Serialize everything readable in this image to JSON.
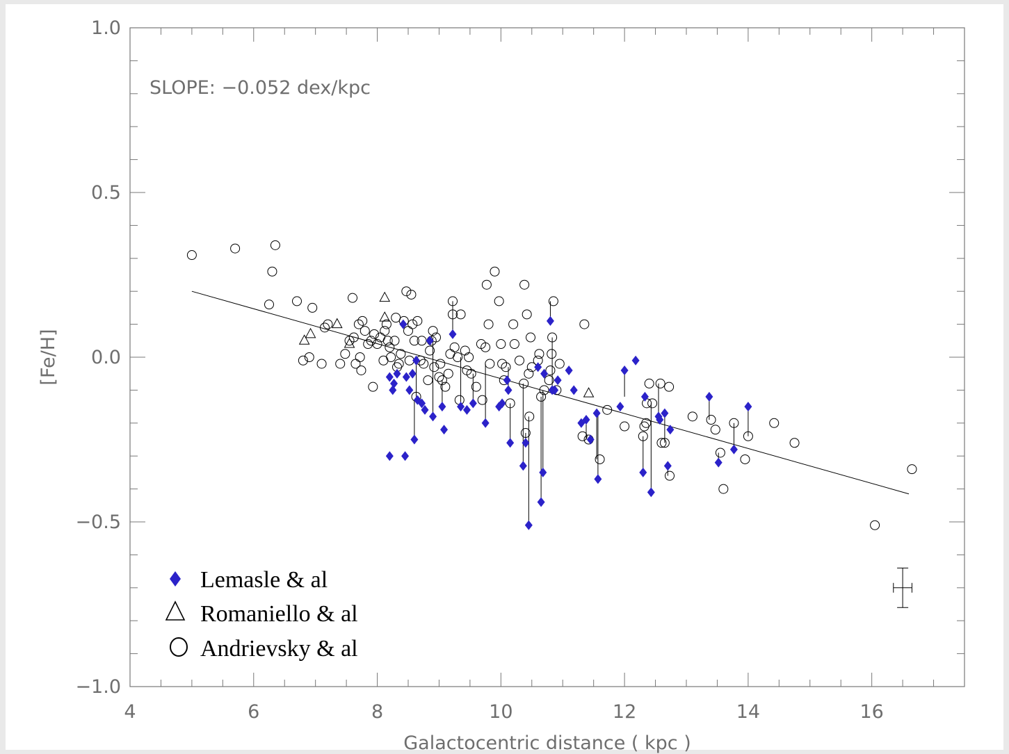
{
  "chart_data": {
    "type": "scatter",
    "title": "",
    "annotation": "SLOPE: −0.052 dex/kpc",
    "xlabel": "Galactocentric distance ( kpc )",
    "ylabel": "[Fe/H]",
    "xlim": [
      4,
      17.5
    ],
    "ylim": [
      -1.0,
      1.0
    ],
    "x_ticks": [
      4,
      6,
      8,
      10,
      12,
      14,
      16
    ],
    "x_tick_labels": [
      "4",
      "6",
      "8",
      "10",
      "12",
      "14",
      "16"
    ],
    "y_ticks": [
      -1.0,
      -0.5,
      0.0,
      0.5,
      1.0
    ],
    "y_tick_labels": [
      "−1.0",
      "−0.5",
      "0.0",
      "0.5",
      "1.0"
    ],
    "grid": false,
    "legend_position": "bottom-left",
    "legend": [
      {
        "name": "Lemasle & al",
        "marker": "diamond-filled",
        "color": "#2b22c9"
      },
      {
        "name": "Romaniello & al",
        "marker": "triangle-open",
        "color": "#000000"
      },
      {
        "name": "Andrievsky & al",
        "marker": "circle-open",
        "color": "#000000"
      }
    ],
    "fit_line": {
      "x": [
        5.0,
        16.6
      ],
      "y": [
        0.2,
        -0.415
      ]
    },
    "error_bar": {
      "x": 16.5,
      "y": -0.7,
      "xerr": 0.15,
      "yerr": 0.06
    },
    "series": [
      {
        "name": "Lemasle & al",
        "points": [
          [
            8.2,
            -0.06
          ],
          [
            8.25,
            -0.1
          ],
          [
            8.27,
            -0.08
          ],
          [
            8.32,
            -0.05
          ],
          [
            8.42,
            0.1
          ],
          [
            8.47,
            -0.06
          ],
          [
            8.52,
            -0.1
          ],
          [
            8.57,
            -0.05
          ],
          [
            8.6,
            -0.25
          ],
          [
            8.63,
            -0.01
          ],
          [
            8.65,
            -0.13
          ],
          [
            8.72,
            -0.14
          ],
          [
            8.77,
            -0.16
          ],
          [
            8.85,
            0.05
          ],
          [
            8.9,
            -0.18
          ],
          [
            9.05,
            -0.15
          ],
          [
            9.08,
            -0.22
          ],
          [
            9.22,
            0.07
          ],
          [
            9.35,
            -0.15
          ],
          [
            9.45,
            -0.16
          ],
          [
            9.55,
            -0.14
          ],
          [
            8.2,
            -0.3
          ],
          [
            8.45,
            -0.3
          ],
          [
            9.75,
            -0.2
          ],
          [
            9.97,
            -0.15
          ],
          [
            10.02,
            -0.14
          ],
          [
            10.1,
            -0.07
          ],
          [
            10.12,
            -0.1
          ],
          [
            10.15,
            -0.26
          ],
          [
            10.36,
            -0.33
          ],
          [
            10.4,
            -0.26
          ],
          [
            10.45,
            -0.51
          ],
          [
            10.6,
            -0.03
          ],
          [
            10.65,
            -0.44
          ],
          [
            10.68,
            -0.35
          ],
          [
            10.7,
            -0.05
          ],
          [
            10.8,
            0.11
          ],
          [
            10.83,
            -0.1
          ],
          [
            10.87,
            -0.1
          ],
          [
            10.92,
            -0.07
          ],
          [
            11.1,
            -0.04
          ],
          [
            11.18,
            -0.1
          ],
          [
            11.3,
            -0.2
          ],
          [
            11.38,
            -0.19
          ],
          [
            11.45,
            -0.25
          ],
          [
            11.55,
            -0.17
          ],
          [
            11.57,
            -0.37
          ],
          [
            11.93,
            -0.15
          ],
          [
            12.0,
            -0.04
          ],
          [
            12.18,
            -0.01
          ],
          [
            12.3,
            -0.35
          ],
          [
            12.33,
            -0.12
          ],
          [
            12.43,
            -0.41
          ],
          [
            12.55,
            -0.18
          ],
          [
            12.57,
            -0.19
          ],
          [
            12.65,
            -0.17
          ],
          [
            12.7,
            -0.33
          ],
          [
            12.74,
            -0.22
          ],
          [
            13.37,
            -0.12
          ],
          [
            13.52,
            -0.32
          ],
          [
            13.77,
            -0.28
          ],
          [
            14.0,
            -0.15
          ]
        ]
      },
      {
        "name": "Romaniello & al",
        "points": [
          [
            6.82,
            0.05
          ],
          [
            6.92,
            0.07
          ],
          [
            7.35,
            0.1
          ],
          [
            7.55,
            0.04
          ],
          [
            8.12,
            0.18
          ],
          [
            8.12,
            0.12
          ],
          [
            11.42,
            -0.11
          ]
        ]
      },
      {
        "name": "Andrievsky & al",
        "points": [
          [
            5.0,
            0.31
          ],
          [
            5.7,
            0.33
          ],
          [
            6.3,
            0.26
          ],
          [
            6.35,
            0.34
          ],
          [
            6.25,
            0.16
          ],
          [
            6.7,
            0.17
          ],
          [
            6.95,
            0.15
          ],
          [
            6.8,
            -0.01
          ],
          [
            6.9,
            0.0
          ],
          [
            7.1,
            -0.02
          ],
          [
            7.15,
            0.09
          ],
          [
            7.2,
            0.1
          ],
          [
            7.4,
            -0.02
          ],
          [
            7.48,
            0.01
          ],
          [
            7.55,
            0.05
          ],
          [
            7.6,
            0.18
          ],
          [
            7.62,
            0.06
          ],
          [
            7.65,
            -0.02
          ],
          [
            7.7,
            0.1
          ],
          [
            7.72,
            0.0
          ],
          [
            7.74,
            -0.04
          ],
          [
            7.76,
            0.11
          ],
          [
            7.8,
            0.08
          ],
          [
            7.85,
            0.04
          ],
          [
            7.9,
            0.05
          ],
          [
            7.95,
            0.07
          ],
          [
            7.93,
            -0.09
          ],
          [
            8.0,
            0.04
          ],
          [
            8.05,
            0.06
          ],
          [
            8.1,
            -0.01
          ],
          [
            8.12,
            0.08
          ],
          [
            8.15,
            0.1
          ],
          [
            8.17,
            0.05
          ],
          [
            8.2,
            0.03
          ],
          [
            8.22,
            0.0
          ],
          [
            8.28,
            0.05
          ],
          [
            8.3,
            0.12
          ],
          [
            8.32,
            -0.03
          ],
          [
            8.35,
            -0.02
          ],
          [
            8.38,
            0.01
          ],
          [
            8.43,
            0.11
          ],
          [
            8.47,
            0.2
          ],
          [
            8.5,
            0.08
          ],
          [
            8.52,
            -0.01
          ],
          [
            8.55,
            0.19
          ],
          [
            8.57,
            0.1
          ],
          [
            8.6,
            0.05
          ],
          [
            8.63,
            -0.12
          ],
          [
            8.65,
            0.11
          ],
          [
            8.7,
            -0.01
          ],
          [
            8.72,
            0.05
          ],
          [
            8.75,
            -0.02
          ],
          [
            8.82,
            -0.07
          ],
          [
            8.85,
            0.02
          ],
          [
            8.88,
            0.05
          ],
          [
            8.9,
            0.08
          ],
          [
            8.92,
            -0.03
          ],
          [
            8.95,
            0.06
          ],
          [
            9.0,
            -0.06
          ],
          [
            9.02,
            -0.02
          ],
          [
            9.05,
            -0.07
          ],
          [
            9.1,
            -0.09
          ],
          [
            9.15,
            -0.05
          ],
          [
            9.18,
            0.01
          ],
          [
            9.22,
            0.13
          ],
          [
            9.22,
            0.17
          ],
          [
            9.25,
            0.03
          ],
          [
            9.3,
            0.0
          ],
          [
            9.33,
            -0.13
          ],
          [
            9.35,
            0.13
          ],
          [
            9.42,
            0.02
          ],
          [
            9.45,
            -0.04
          ],
          [
            9.48,
            0.0
          ],
          [
            9.52,
            -0.05
          ],
          [
            9.6,
            -0.09
          ],
          [
            9.7,
            -0.13
          ],
          [
            9.68,
            0.04
          ],
          [
            9.75,
            0.03
          ],
          [
            9.77,
            0.22
          ],
          [
            9.8,
            0.1
          ],
          [
            9.82,
            -0.02
          ],
          [
            9.9,
            0.26
          ],
          [
            9.97,
            0.17
          ],
          [
            10.0,
            0.04
          ],
          [
            10.02,
            -0.02
          ],
          [
            10.05,
            -0.07
          ],
          [
            10.08,
            -0.03
          ],
          [
            10.15,
            -0.14
          ],
          [
            10.2,
            0.1
          ],
          [
            10.22,
            0.04
          ],
          [
            10.3,
            -0.01
          ],
          [
            10.37,
            -0.08
          ],
          [
            10.38,
            0.22
          ],
          [
            10.4,
            -0.23
          ],
          [
            10.42,
            0.13
          ],
          [
            10.45,
            -0.05
          ],
          [
            10.46,
            -0.18
          ],
          [
            10.48,
            0.06
          ],
          [
            10.5,
            -0.03
          ],
          [
            10.6,
            -0.01
          ],
          [
            10.62,
            0.01
          ],
          [
            10.65,
            -0.12
          ],
          [
            10.7,
            -0.1
          ],
          [
            10.78,
            -0.07
          ],
          [
            10.8,
            -0.04
          ],
          [
            10.82,
            0.01
          ],
          [
            10.83,
            0.06
          ],
          [
            10.85,
            0.17
          ],
          [
            10.9,
            -0.1
          ],
          [
            10.95,
            -0.02
          ],
          [
            11.32,
            -0.24
          ],
          [
            11.35,
            0.1
          ],
          [
            11.42,
            -0.25
          ],
          [
            11.6,
            -0.31
          ],
          [
            11.72,
            -0.16
          ],
          [
            12.0,
            -0.21
          ],
          [
            12.3,
            -0.24
          ],
          [
            12.32,
            -0.21
          ],
          [
            12.35,
            -0.2
          ],
          [
            12.36,
            -0.14
          ],
          [
            12.4,
            -0.08
          ],
          [
            12.45,
            -0.14
          ],
          [
            12.58,
            -0.08
          ],
          [
            12.6,
            -0.26
          ],
          [
            12.65,
            -0.26
          ],
          [
            12.72,
            -0.09
          ],
          [
            12.73,
            -0.36
          ],
          [
            13.1,
            -0.18
          ],
          [
            13.4,
            -0.19
          ],
          [
            13.47,
            -0.22
          ],
          [
            13.55,
            -0.29
          ],
          [
            13.6,
            -0.4
          ],
          [
            13.77,
            -0.2
          ],
          [
            13.95,
            -0.31
          ],
          [
            14.0,
            -0.24
          ],
          [
            14.42,
            -0.2
          ],
          [
            14.75,
            -0.26
          ],
          [
            16.05,
            -0.51
          ],
          [
            16.65,
            -0.34
          ]
        ]
      }
    ],
    "connectors": [
      [
        [
          8.63,
          -0.01
        ],
        [
          8.63,
          -0.12
        ]
      ],
      [
        [
          8.6,
          -0.25
        ],
        [
          8.6,
          -0.13
        ]
      ],
      [
        [
          8.9,
          -0.18
        ],
        [
          8.9,
          0.06
        ]
      ],
      [
        [
          9.22,
          0.07
        ],
        [
          9.22,
          0.17
        ]
      ],
      [
        [
          9.05,
          -0.15
        ],
        [
          9.05,
          -0.07
        ]
      ],
      [
        [
          9.35,
          -0.15
        ],
        [
          9.35,
          0.0
        ]
      ],
      [
        [
          9.55,
          -0.14
        ],
        [
          9.55,
          -0.05
        ]
      ],
      [
        [
          9.75,
          -0.2
        ],
        [
          9.75,
          -0.02
        ]
      ],
      [
        [
          10.12,
          -0.1
        ],
        [
          10.12,
          -0.03
        ]
      ],
      [
        [
          10.15,
          -0.26
        ],
        [
          10.15,
          -0.14
        ]
      ],
      [
        [
          10.36,
          -0.33
        ],
        [
          10.36,
          -0.08
        ]
      ],
      [
        [
          10.4,
          -0.26
        ],
        [
          10.4,
          -0.23
        ]
      ],
      [
        [
          10.45,
          -0.51
        ],
        [
          10.45,
          -0.18
        ]
      ],
      [
        [
          10.65,
          -0.44
        ],
        [
          10.65,
          -0.12
        ]
      ],
      [
        [
          10.68,
          -0.35
        ],
        [
          10.68,
          -0.1
        ]
      ],
      [
        [
          10.8,
          0.11
        ],
        [
          10.8,
          0.17
        ]
      ],
      [
        [
          10.83,
          -0.1
        ],
        [
          10.83,
          0.06
        ]
      ],
      [
        [
          11.38,
          -0.19
        ],
        [
          11.38,
          -0.25
        ]
      ],
      [
        [
          11.55,
          -0.17
        ],
        [
          11.55,
          -0.31
        ]
      ],
      [
        [
          11.57,
          -0.37
        ],
        [
          11.57,
          -0.17
        ]
      ],
      [
        [
          12.0,
          -0.04
        ],
        [
          12.0,
          -0.12
        ]
      ],
      [
        [
          12.3,
          -0.35
        ],
        [
          12.3,
          -0.24
        ]
      ],
      [
        [
          12.43,
          -0.41
        ],
        [
          12.43,
          -0.14
        ]
      ],
      [
        [
          12.55,
          -0.18
        ],
        [
          12.55,
          -0.08
        ]
      ],
      [
        [
          12.65,
          -0.17
        ],
        [
          12.65,
          -0.26
        ]
      ],
      [
        [
          12.7,
          -0.33
        ],
        [
          12.7,
          -0.36
        ]
      ],
      [
        [
          13.37,
          -0.12
        ],
        [
          13.37,
          -0.19
        ]
      ],
      [
        [
          13.52,
          -0.32
        ],
        [
          13.52,
          -0.29
        ]
      ],
      [
        [
          13.77,
          -0.28
        ],
        [
          13.77,
          -0.2
        ]
      ],
      [
        [
          14.0,
          -0.15
        ],
        [
          14.0,
          -0.24
        ]
      ]
    ]
  }
}
